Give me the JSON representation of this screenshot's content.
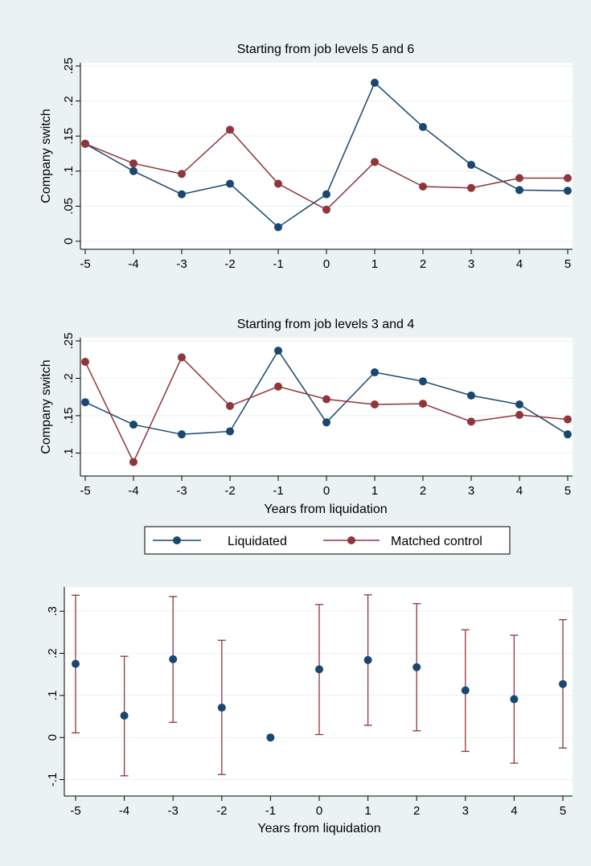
{
  "colors": {
    "background": "#eaf2f3",
    "plot_bg": "#ffffff",
    "grid": "#eaf2f3",
    "liquidated": "#1a476f",
    "control": "#90353b",
    "ci": "#90353b"
  },
  "legend": {
    "items": [
      {
        "label": "Liquidated",
        "color": "#1a476f"
      },
      {
        "label": "Matched control",
        "color": "#90353b"
      }
    ]
  },
  "chart_data": [
    {
      "type": "line",
      "title": "Starting from job levels 5 and 6",
      "xlabel": "",
      "ylabel": "Company switch",
      "x": [
        -5,
        -4,
        -3,
        -2,
        -1,
        0,
        1,
        2,
        3,
        4,
        5
      ],
      "x_ticks": [
        "-5",
        "-4",
        "-3",
        "-2",
        "-1",
        "0",
        "1",
        "2",
        "3",
        "4",
        "5"
      ],
      "ylim": [
        0,
        0.25
      ],
      "y_ticks": [
        {
          "v": 0,
          "label": "0"
        },
        {
          "v": 0.05,
          "label": ".05"
        },
        {
          "v": 0.1,
          "label": ".1"
        },
        {
          "v": 0.15,
          "label": ".15"
        },
        {
          "v": 0.2,
          "label": ".2"
        },
        {
          "v": 0.25,
          "label": ".25"
        }
      ],
      "grid": true,
      "series": [
        {
          "name": "Liquidated",
          "values": [
            0.139,
            0.1,
            0.067,
            0.082,
            0.02,
            0.067,
            0.226,
            0.163,
            0.109,
            0.073,
            0.072
          ]
        },
        {
          "name": "Matched control",
          "values": [
            0.139,
            0.111,
            0.096,
            0.159,
            0.082,
            0.045,
            0.113,
            0.078,
            0.076,
            0.09,
            0.09
          ]
        }
      ]
    },
    {
      "type": "line",
      "title": "Starting from job levels 3 and 4",
      "xlabel": "Years from liquidation",
      "ylabel": "Company switch",
      "x": [
        -5,
        -4,
        -3,
        -2,
        -1,
        0,
        1,
        2,
        3,
        4,
        5
      ],
      "x_ticks": [
        "-5",
        "-4",
        "-3",
        "-2",
        "-1",
        "0",
        "1",
        "2",
        "3",
        "4",
        "5"
      ],
      "ylim": [
        0.08,
        0.25
      ],
      "y_ticks": [
        {
          "v": 0.1,
          "label": ".1"
        },
        {
          "v": 0.15,
          "label": ".15"
        },
        {
          "v": 0.2,
          "label": ".2"
        },
        {
          "v": 0.25,
          "label": ".25"
        }
      ],
      "grid": true,
      "series": [
        {
          "name": "Liquidated",
          "values": [
            0.168,
            0.138,
            0.125,
            0.129,
            0.237,
            0.141,
            0.208,
            0.196,
            0.177,
            0.165,
            0.125
          ]
        },
        {
          "name": "Matched control",
          "values": [
            0.222,
            0.088,
            0.228,
            0.163,
            0.189,
            0.172,
            0.165,
            0.166,
            0.142,
            0.151,
            0.145
          ]
        }
      ]
    },
    {
      "type": "scatter",
      "title": "",
      "xlabel": "Years from liquidation",
      "ylabel": "",
      "x": [
        -5,
        -4,
        -3,
        -2,
        -1,
        0,
        1,
        2,
        3,
        4,
        5
      ],
      "x_ticks": [
        "-5",
        "-4",
        "-3",
        "-2",
        "-1",
        "0",
        "1",
        "2",
        "3",
        "4",
        "5"
      ],
      "ylim": [
        -0.12,
        0.35
      ],
      "y_ticks": [
        {
          "v": -0.1,
          "label": "-.1"
        },
        {
          "v": 0,
          "label": "0"
        },
        {
          "v": 0.1,
          "label": ".1"
        },
        {
          "v": 0.2,
          "label": ".2"
        },
        {
          "v": 0.3,
          "label": ".3"
        }
      ],
      "grid": true,
      "series": [
        {
          "values": [
            0.175,
            0.052,
            0.186,
            0.071,
            0.0,
            0.162,
            0.184,
            0.167,
            0.112,
            0.091,
            0.127
          ],
          "ci_low": [
            0.011,
            -0.091,
            0.036,
            -0.088,
            null,
            0.007,
            0.029,
            0.016,
            -0.033,
            -0.061,
            -0.025
          ],
          "ci_high": [
            0.338,
            0.193,
            0.335,
            0.231,
            null,
            0.316,
            0.339,
            0.318,
            0.256,
            0.243,
            0.28
          ]
        }
      ]
    }
  ]
}
